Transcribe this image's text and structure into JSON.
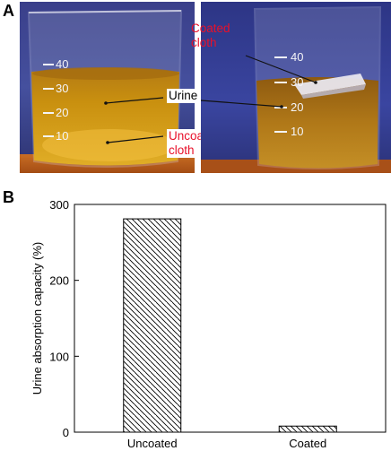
{
  "panels": {
    "a_label": "A",
    "b_label": "B"
  },
  "photo_left": {
    "beaker_marks": [
      "40",
      "30",
      "20",
      "10"
    ],
    "label_urine": "Urine",
    "label_uncoated": "Uncoated\ncloth"
  },
  "photo_right": {
    "beaker_marks": [
      "40",
      "30",
      "20",
      "10"
    ],
    "label_coated": "Coated\ncloth"
  },
  "colors": {
    "annotation_red": "#e8102a",
    "backdrop_blue": "#3d4a9a",
    "liquid_amber": "#c98a10"
  },
  "chart_data": {
    "type": "bar",
    "categories": [
      "Uncoated",
      "Coated"
    ],
    "values": [
      281,
      8
    ],
    "ylabel": "Urine absorption capacity (%)",
    "xlabel": "",
    "ylim": [
      0,
      300
    ],
    "yticks": [
      0,
      100,
      200,
      300
    ],
    "bar_fill": "diagonal-hatch",
    "grid": false
  }
}
